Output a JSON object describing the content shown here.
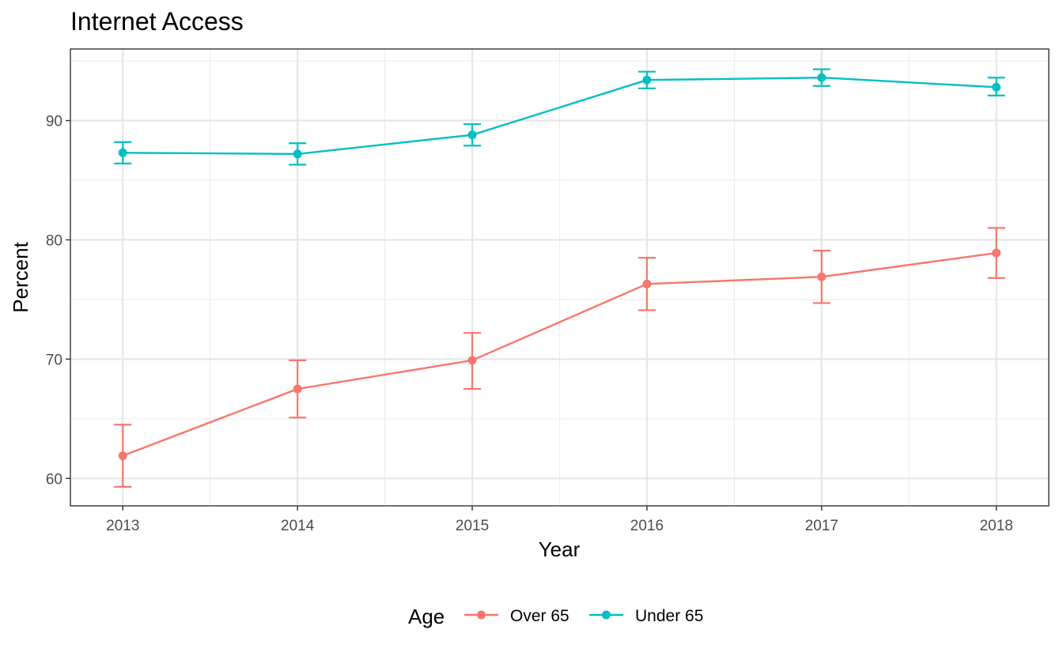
{
  "chart_data": {
    "type": "line",
    "title": "Internet Access",
    "xlabel": "Year",
    "ylabel": "Percent",
    "x": [
      2013,
      2014,
      2015,
      2016,
      2017,
      2018
    ],
    "xlim": [
      2012.7,
      2018.3
    ],
    "ylim": [
      57.7,
      96
    ],
    "yticks": [
      60,
      70,
      80,
      90
    ],
    "grid": true,
    "error_bars": true,
    "legend": {
      "title": "Age",
      "position": "bottom"
    },
    "series": [
      {
        "name": "Over 65",
        "color": "#F8766D",
        "values": [
          61.9,
          67.5,
          69.9,
          76.3,
          76.9,
          78.9
        ],
        "lower": [
          59.3,
          65.1,
          67.5,
          74.1,
          74.7,
          76.8
        ],
        "upper": [
          64.5,
          69.9,
          72.2,
          78.5,
          79.1,
          81.0
        ]
      },
      {
        "name": "Under 65",
        "color": "#00BFC4",
        "values": [
          87.3,
          87.2,
          88.8,
          93.4,
          93.6,
          92.8
        ],
        "lower": [
          86.4,
          86.3,
          87.9,
          92.7,
          92.9,
          92.1
        ],
        "upper": [
          88.2,
          88.1,
          89.7,
          94.1,
          94.3,
          93.6
        ]
      }
    ]
  }
}
